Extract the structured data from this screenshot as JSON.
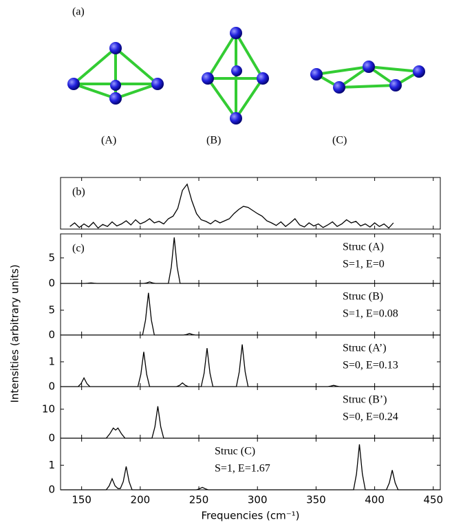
{
  "structures": {
    "panel_label": "(a)",
    "labels": [
      "(A)",
      "(B)",
      "(C)"
    ]
  },
  "chart_data": {
    "type": "line",
    "xlabel": "Frequencies (cm⁻¹)",
    "ylabel": "Intensities (arbitrary units)",
    "xlim": [
      132,
      456
    ],
    "xticks": [
      150,
      200,
      250,
      300,
      350,
      400,
      450
    ],
    "color": "#000000",
    "panels": [
      {
        "label": "(b)",
        "ylim": [
          0,
          1
        ],
        "x": [
          140,
          144,
          148,
          152,
          156,
          160,
          164,
          168,
          172,
          176,
          180,
          184,
          188,
          192,
          196,
          200,
          204,
          208,
          212,
          216,
          220,
          224,
          228,
          232,
          236,
          240,
          244,
          248,
          252,
          256,
          260,
          264,
          268,
          272,
          276,
          280,
          284,
          288,
          292,
          296,
          300,
          304,
          308,
          312,
          316,
          320,
          324,
          328,
          332,
          336,
          340,
          344,
          348,
          352,
          356,
          360,
          364,
          368,
          372,
          376,
          380,
          384,
          388,
          392,
          396,
          400,
          404,
          408,
          412,
          416
        ],
        "values": [
          0.05,
          0.12,
          0.03,
          0.1,
          0.04,
          0.13,
          0.02,
          0.09,
          0.05,
          0.14,
          0.06,
          0.1,
          0.16,
          0.08,
          0.18,
          0.1,
          0.14,
          0.2,
          0.12,
          0.15,
          0.1,
          0.2,
          0.25,
          0.4,
          0.75,
          0.87,
          0.55,
          0.3,
          0.18,
          0.15,
          0.1,
          0.17,
          0.12,
          0.16,
          0.2,
          0.3,
          0.38,
          0.44,
          0.42,
          0.36,
          0.3,
          0.25,
          0.16,
          0.12,
          0.07,
          0.14,
          0.05,
          0.12,
          0.2,
          0.08,
          0.04,
          0.12,
          0.06,
          0.1,
          0.03,
          0.08,
          0.14,
          0.05,
          0.1,
          0.18,
          0.12,
          0.15,
          0.06,
          0.1,
          0.04,
          0.12,
          0.05,
          0.1,
          0.02,
          0.12
        ]
      },
      {
        "label": "(c)",
        "annotation": [
          "Struc (A)",
          "S=1, E=0"
        ],
        "ylim": [
          0,
          9.7
        ],
        "yticks": [
          0,
          5
        ],
        "x": [
          132,
          153,
          155.5,
          158,
          160.5,
          163,
          203,
          205.5,
          208,
          210.5,
          213,
          224,
          226.5,
          229,
          231.5,
          234,
          456
        ],
        "values": [
          0,
          0,
          0.04,
          0.1,
          0.04,
          0,
          0,
          0.1,
          0.3,
          0.1,
          0,
          0,
          3.2,
          9,
          3.2,
          0,
          0
        ]
      },
      {
        "annotation": [
          "Struc (B)",
          "S=1, E=0.08"
        ],
        "ylim": [
          0,
          10.4
        ],
        "yticks": [
          0,
          5
        ],
        "x": [
          132,
          202,
          204.5,
          207,
          209.5,
          212,
          237,
          239.5,
          242,
          244.5,
          247,
          456
        ],
        "values": [
          0,
          0,
          3,
          8.5,
          3,
          0,
          0,
          0.1,
          0.3,
          0.1,
          0,
          0
        ]
      },
      {
        "annotation": [
          "Struc (A’)",
          "S=0, E=0.13"
        ],
        "ylim": [
          0,
          2.08
        ],
        "yticks": [
          0,
          1
        ],
        "x": [
          132,
          147,
          149.5,
          152,
          154.5,
          157,
          198,
          200.5,
          203,
          205.5,
          208,
          231,
          233.5,
          236,
          238.5,
          241,
          252,
          254.5,
          257,
          259.5,
          262,
          282,
          284.5,
          287,
          289.5,
          292,
          360,
          362.5,
          365,
          367.5,
          370,
          456
        ],
        "values": [
          0,
          0,
          0.12,
          0.35,
          0.12,
          0,
          0,
          0.49,
          1.4,
          0.49,
          0,
          0,
          0.05,
          0.15,
          0.05,
          0,
          0,
          0.54,
          1.55,
          0.54,
          0,
          0,
          0.6,
          1.7,
          0.6,
          0,
          0,
          0.02,
          0.05,
          0.02,
          0,
          0
        ]
      },
      {
        "annotation": [
          "Struc (B’)",
          "S=0, E=0.24"
        ],
        "ylim": [
          0,
          17.8
        ],
        "yticks": [
          0,
          10
        ],
        "x": [
          132,
          171,
          174,
          177,
          179,
          181,
          184,
          187,
          210,
          212.5,
          215,
          217.5,
          220,
          456
        ],
        "values": [
          0,
          0,
          1.5,
          3.5,
          2.8,
          3.5,
          1.5,
          0,
          0,
          3.9,
          11,
          3.9,
          0,
          0
        ]
      },
      {
        "annotation": [
          "Struc (C)",
          "S=1, E=1.67"
        ],
        "ylim": [
          0,
          2.1
        ],
        "yticks": [
          0,
          1
        ],
        "x": [
          132,
          171,
          173.5,
          176,
          178.5,
          181,
          183,
          185.5,
          188,
          190.5,
          193,
          248,
          250.5,
          253,
          255.5,
          258,
          382,
          384.5,
          387,
          389.5,
          392,
          410,
          412.5,
          415,
          417.5,
          420,
          456
        ],
        "values": [
          0,
          0,
          0.16,
          0.45,
          0.16,
          0.05,
          0.05,
          0.33,
          0.95,
          0.33,
          0,
          0,
          0.04,
          0.1,
          0.04,
          0,
          0,
          0.65,
          1.85,
          0.65,
          0,
          0,
          0.28,
          0.8,
          0.28,
          0,
          0
        ]
      }
    ]
  }
}
